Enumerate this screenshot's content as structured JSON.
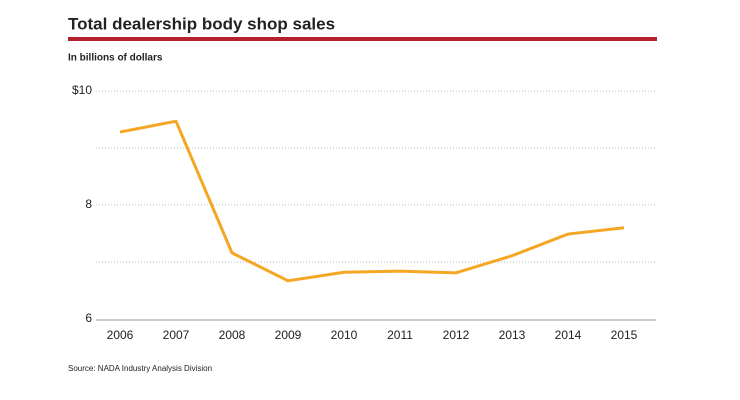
{
  "chart_data": {
    "type": "line",
    "title": "Total dealership body shop sales",
    "subtitle": "In billions of dollars",
    "source": "Source: NADA Industry Analysis Division",
    "categories": [
      "2006",
      "2007",
      "2008",
      "2009",
      "2010",
      "2011",
      "2012",
      "2013",
      "2014",
      "2015"
    ],
    "values": [
      9.28,
      9.47,
      7.16,
      6.67,
      6.82,
      6.84,
      6.81,
      7.11,
      7.49,
      7.6
    ],
    "color": "#f5a623",
    "ylim": [
      6,
      10
    ],
    "yticks": [
      {
        "value": 10,
        "label": "$10"
      },
      8,
      6
    ],
    "minor_yticks": [
      7,
      9
    ],
    "grid": true
  }
}
